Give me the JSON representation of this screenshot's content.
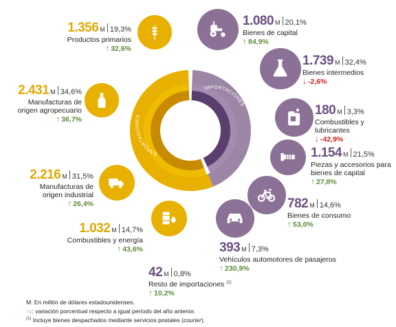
{
  "ring": {
    "exports_label": "EXPORTACIONES",
    "imports_label": "IMPORTACIONES",
    "exports_color": "#e8b000",
    "imports_color": "#9c86a6",
    "exports_inner_color": "#c78a00",
    "imports_inner_color": "#5a3e6e"
  },
  "unit": "M",
  "exports": [
    {
      "value": "1.356",
      "share": "19,3%",
      "label": "Productos primarios",
      "variation": "32,6%",
      "direction": "up",
      "icon": "wheat-icon"
    },
    {
      "value": "2.431",
      "share": "34,6%",
      "label_line1": "Manufacturas de",
      "label_line2": "origen agropecuario",
      "variation": "36,7%",
      "direction": "up",
      "icon": "bottle-icon"
    },
    {
      "value": "2.216",
      "share": "31,5%",
      "label_line1": "Manufacturas de",
      "label_line2": "origen industrial",
      "variation": "26,4%",
      "direction": "up",
      "icon": "truck-icon"
    },
    {
      "value": "1.032",
      "share": "14,7%",
      "label": "Combustibles y energía",
      "variation": "43,6%",
      "direction": "up",
      "icon": "oil-barrel-icon"
    }
  ],
  "imports": [
    {
      "value": "1.080",
      "share": "20,1%",
      "label": "Bienes de capital",
      "variation": "84,9%",
      "direction": "up",
      "icon": "tractor-icon"
    },
    {
      "value": "1.739",
      "share": "32,4%",
      "label": "Bienes intermedios",
      "variation": "-2,6%",
      "direction": "down",
      "icon": "flask-icon"
    },
    {
      "value": "180",
      "share": "3,3%",
      "label": "Combustibles y lubricantes",
      "variation": "-42,9%",
      "direction": "down",
      "icon": "jerrycan-icon"
    },
    {
      "value": "1.154",
      "share": "21,5%",
      "label_line1": "Piezas y accesorios para",
      "label_line2": "bienes de capital",
      "variation": "27,8%",
      "direction": "up",
      "icon": "bolt-part-icon"
    },
    {
      "value": "782",
      "share": "14,6%",
      "label": "Bienes de consumo",
      "variation": "53,0%",
      "direction": "up",
      "icon": "bicycle-icon"
    },
    {
      "value": "393",
      "share": "7,3%",
      "label": "Vehículos automotores de pasajeros",
      "variation": "230,9%",
      "direction": "up",
      "icon": "car-icon"
    },
    {
      "value": "42",
      "share": "0,8%",
      "label": "Resto de importaciones",
      "label_note": "(1)",
      "variation": "10,2%",
      "direction": "up"
    }
  ],
  "footer": {
    "line1": "M: En millón de dólares estadounidenses.",
    "line2": ": variación porcentual respecto a igual período del año anterior.",
    "line3_note": "(1)",
    "line3_pre": " Incluye bienes despachados mediante servicios postales (",
    "line3_italic": "courier",
    "line3_post": ")."
  }
}
